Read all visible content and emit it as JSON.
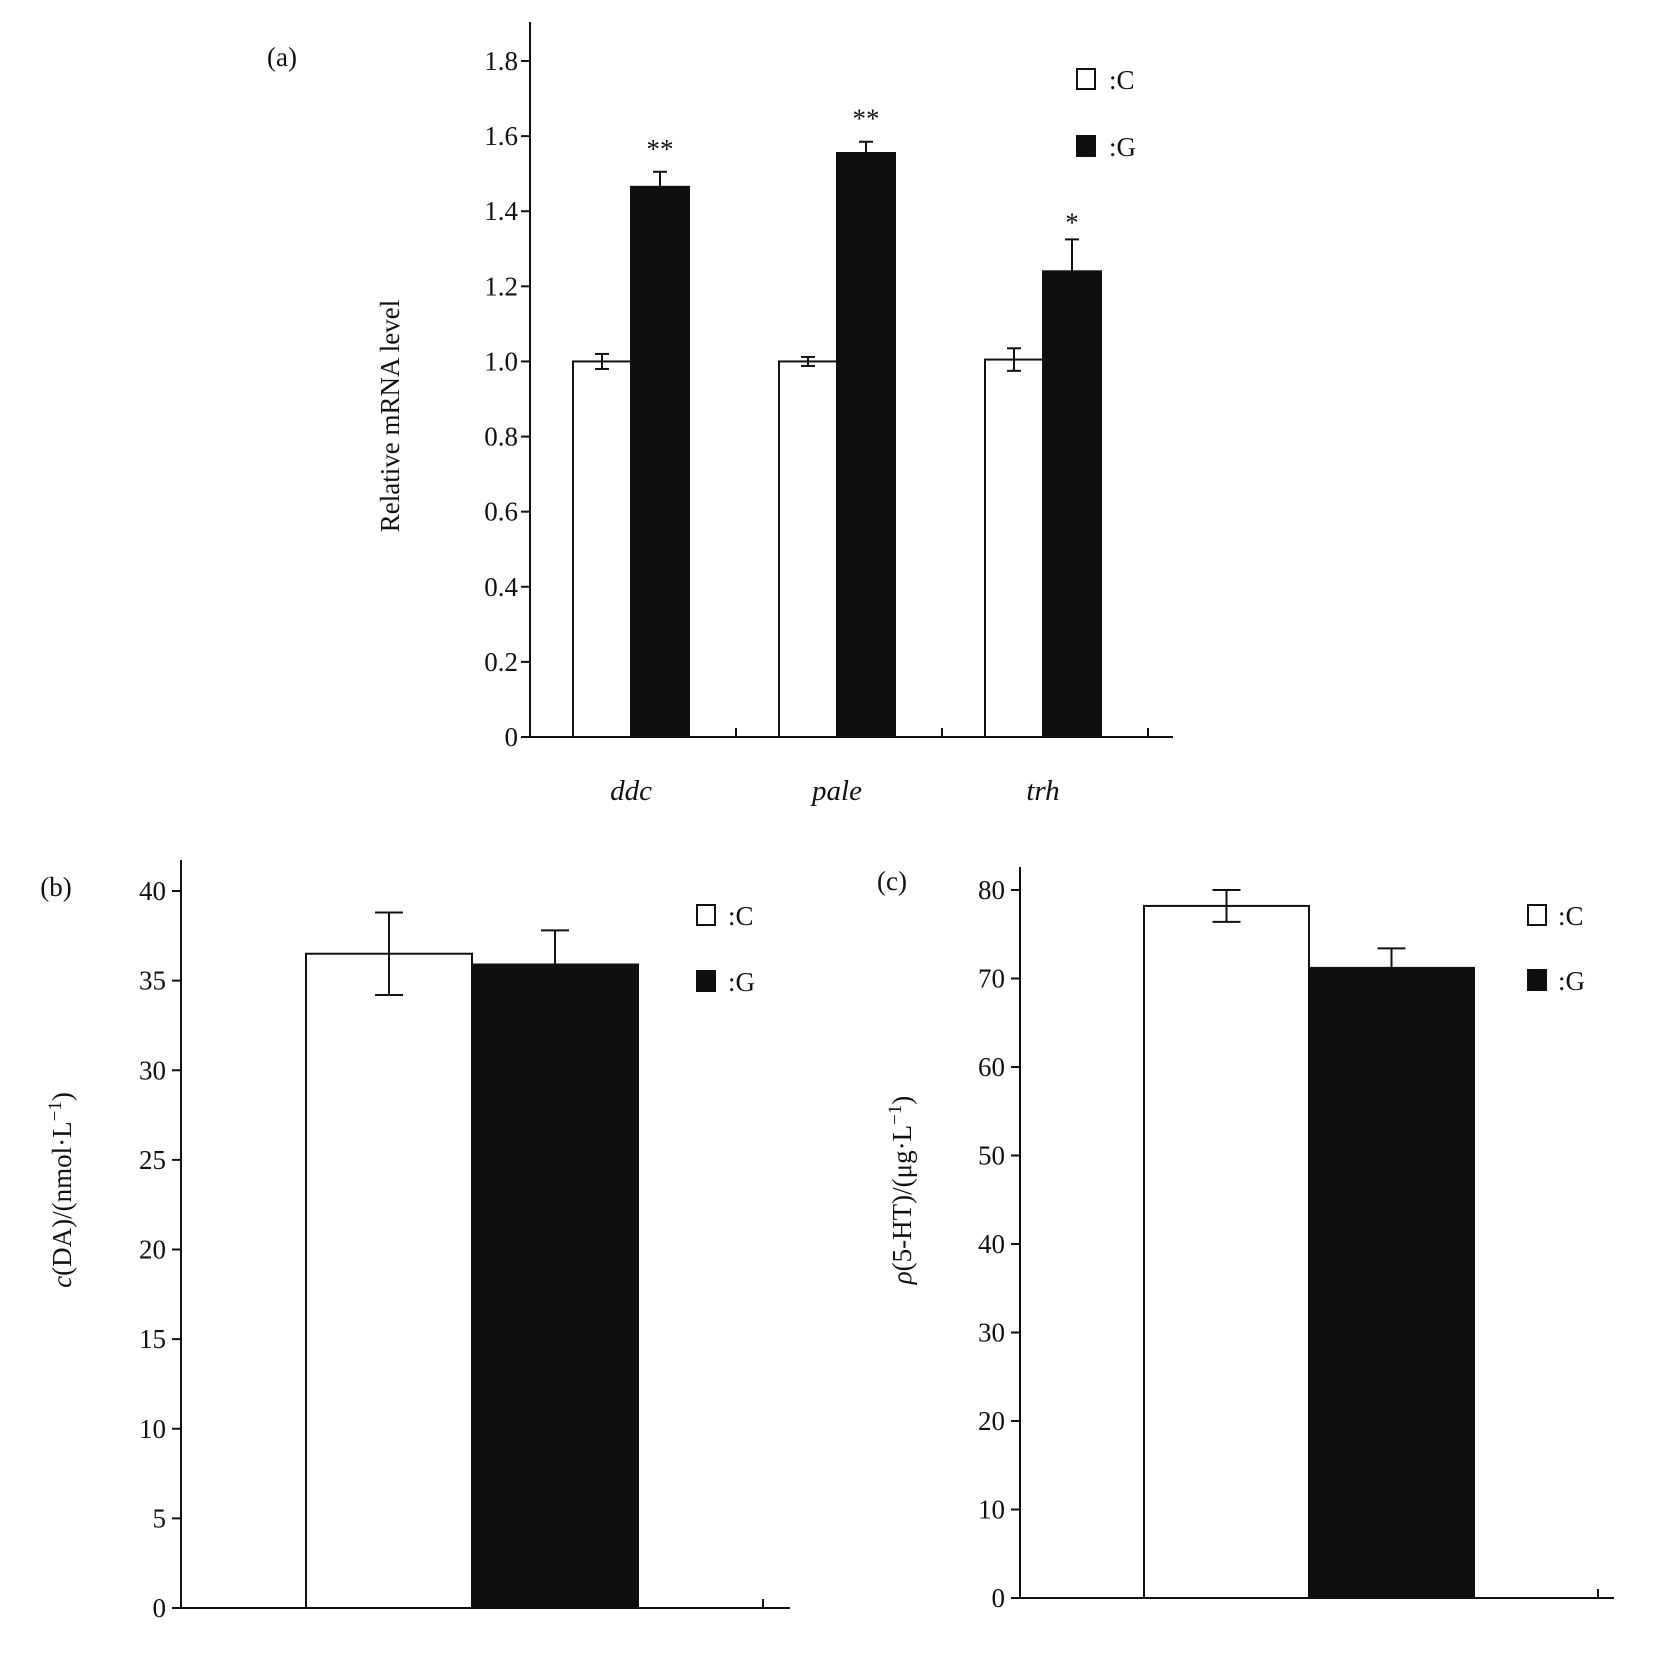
{
  "chart_data": [
    {
      "type": "bar",
      "panel_label": "(a)",
      "categories": [
        "ddc",
        "pale",
        "trh"
      ],
      "series": [
        {
          "name": ":C",
          "values": [
            1.0,
            1.0,
            1.005
          ],
          "errors": [
            0.02,
            0.012,
            0.03
          ]
        },
        {
          "name": ":G",
          "values": [
            1.465,
            1.555,
            1.24
          ],
          "errors": [
            0.04,
            0.03,
            0.085
          ]
        }
      ],
      "significance": {
        ":G": [
          "**",
          "**",
          "*"
        ]
      },
      "ylabel": "Relative mRNA level",
      "ylim": [
        0,
        1.8
      ],
      "yticks": [
        "0",
        "0.2",
        "0.4",
        "0.6",
        "0.8",
        "1.0",
        "1.2",
        "1.4",
        "1.6",
        "1.8"
      ],
      "legend_placement": "top-right",
      "grid": false
    },
    {
      "type": "bar",
      "panel_label": "(b)",
      "categories": [
        ""
      ],
      "series": [
        {
          "name": ":C",
          "values": [
            36.5
          ],
          "errors": [
            2.3
          ]
        },
        {
          "name": ":G",
          "values": [
            35.9
          ],
          "errors": [
            1.9
          ]
        }
      ],
      "ylabel_parts": {
        "italic": "c",
        "rest": "(DA)/(nmol·L",
        "sup": "−1",
        "close": ")"
      },
      "ylim": [
        0,
        40
      ],
      "yticks": [
        "0",
        "5",
        "10",
        "15",
        "20",
        "25",
        "30",
        "35",
        "40"
      ],
      "legend_placement": "top-right",
      "grid": false
    },
    {
      "type": "bar",
      "panel_label": "(c)",
      "categories": [
        ""
      ],
      "series": [
        {
          "name": ":C",
          "values": [
            78.2
          ],
          "errors": [
            1.8
          ]
        },
        {
          "name": ":G",
          "values": [
            71.2
          ],
          "errors": [
            2.2
          ]
        }
      ],
      "ylabel_parts": {
        "italic": "ρ",
        "rest": "(5-HT)/(μg·L",
        "sup": "−1",
        "close": ")"
      },
      "ylim": [
        0,
        80
      ],
      "yticks": [
        "0",
        "10",
        "20",
        "30",
        "40",
        "50",
        "60",
        "70",
        "80"
      ],
      "legend_placement": "top-right",
      "grid": false
    }
  ],
  "colors": {
    "C": "#ffffff",
    "G": "#0f100e",
    "axis": "#111111"
  }
}
